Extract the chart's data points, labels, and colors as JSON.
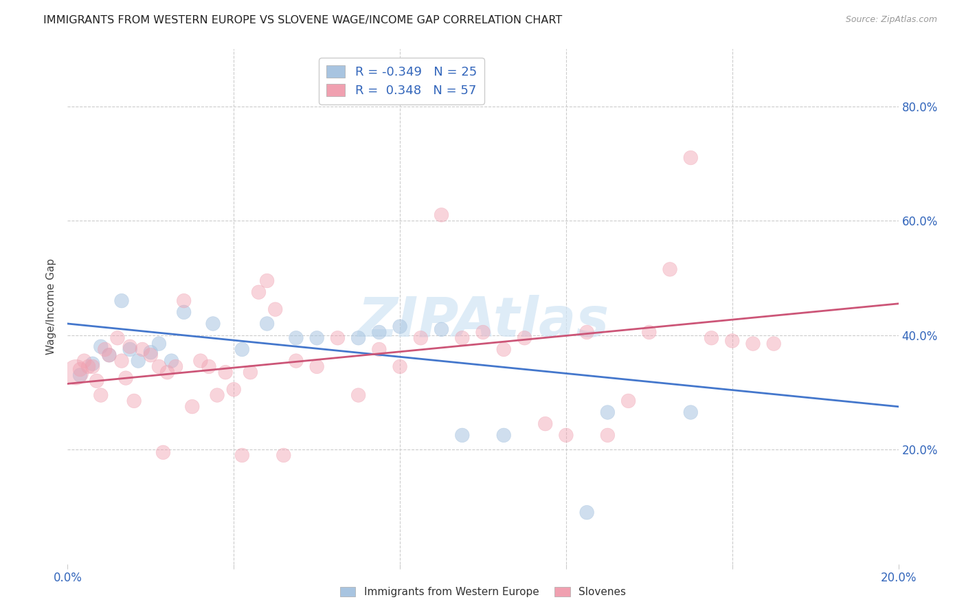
{
  "title": "IMMIGRANTS FROM WESTERN EUROPE VS SLOVENE WAGE/INCOME GAP CORRELATION CHART",
  "source": "Source: ZipAtlas.com",
  "ylabel": "Wage/Income Gap",
  "yticks": [
    0.2,
    0.4,
    0.6,
    0.8
  ],
  "ytick_labels": [
    "20.0%",
    "40.0%",
    "60.0%",
    "80.0%"
  ],
  "background_color": "#ffffff",
  "watermark": "ZIPAtlas",
  "blue_R": "-0.349",
  "blue_N": "25",
  "pink_R": "0.348",
  "pink_N": "57",
  "blue_color": "#a8c4e0",
  "pink_color": "#f0a0b0",
  "blue_line_color": "#4477cc",
  "pink_line_color": "#cc5577",
  "blue_scatter": [
    [
      0.003,
      0.33
    ],
    [
      0.006,
      0.35
    ],
    [
      0.008,
      0.38
    ],
    [
      0.01,
      0.365
    ],
    [
      0.013,
      0.46
    ],
    [
      0.015,
      0.375
    ],
    [
      0.017,
      0.355
    ],
    [
      0.02,
      0.37
    ],
    [
      0.022,
      0.385
    ],
    [
      0.025,
      0.355
    ],
    [
      0.028,
      0.44
    ],
    [
      0.035,
      0.42
    ],
    [
      0.042,
      0.375
    ],
    [
      0.048,
      0.42
    ],
    [
      0.055,
      0.395
    ],
    [
      0.06,
      0.395
    ],
    [
      0.07,
      0.395
    ],
    [
      0.075,
      0.405
    ],
    [
      0.08,
      0.415
    ],
    [
      0.09,
      0.41
    ],
    [
      0.095,
      0.225
    ],
    [
      0.105,
      0.225
    ],
    [
      0.125,
      0.09
    ],
    [
      0.13,
      0.265
    ],
    [
      0.15,
      0.265
    ]
  ],
  "pink_scatter": [
    [
      0.002,
      0.335
    ],
    [
      0.003,
      0.34
    ],
    [
      0.004,
      0.355
    ],
    [
      0.005,
      0.345
    ],
    [
      0.006,
      0.345
    ],
    [
      0.007,
      0.32
    ],
    [
      0.008,
      0.295
    ],
    [
      0.009,
      0.375
    ],
    [
      0.01,
      0.365
    ],
    [
      0.012,
      0.395
    ],
    [
      0.013,
      0.355
    ],
    [
      0.014,
      0.325
    ],
    [
      0.015,
      0.38
    ],
    [
      0.016,
      0.285
    ],
    [
      0.018,
      0.375
    ],
    [
      0.02,
      0.365
    ],
    [
      0.022,
      0.345
    ],
    [
      0.023,
      0.195
    ],
    [
      0.024,
      0.335
    ],
    [
      0.026,
      0.345
    ],
    [
      0.028,
      0.46
    ],
    [
      0.03,
      0.275
    ],
    [
      0.032,
      0.355
    ],
    [
      0.034,
      0.345
    ],
    [
      0.036,
      0.295
    ],
    [
      0.038,
      0.335
    ],
    [
      0.04,
      0.305
    ],
    [
      0.042,
      0.19
    ],
    [
      0.044,
      0.335
    ],
    [
      0.046,
      0.475
    ],
    [
      0.048,
      0.495
    ],
    [
      0.05,
      0.445
    ],
    [
      0.052,
      0.19
    ],
    [
      0.055,
      0.355
    ],
    [
      0.06,
      0.345
    ],
    [
      0.065,
      0.395
    ],
    [
      0.07,
      0.295
    ],
    [
      0.075,
      0.375
    ],
    [
      0.08,
      0.345
    ],
    [
      0.085,
      0.395
    ],
    [
      0.09,
      0.61
    ],
    [
      0.095,
      0.395
    ],
    [
      0.1,
      0.405
    ],
    [
      0.105,
      0.375
    ],
    [
      0.11,
      0.395
    ],
    [
      0.115,
      0.245
    ],
    [
      0.12,
      0.225
    ],
    [
      0.125,
      0.405
    ],
    [
      0.13,
      0.225
    ],
    [
      0.135,
      0.285
    ],
    [
      0.14,
      0.405
    ],
    [
      0.145,
      0.515
    ],
    [
      0.15,
      0.71
    ],
    [
      0.155,
      0.395
    ],
    [
      0.16,
      0.39
    ],
    [
      0.165,
      0.385
    ],
    [
      0.17,
      0.385
    ]
  ],
  "xlim": [
    0.0,
    0.2
  ],
  "ylim": [
    0.0,
    0.9
  ],
  "grid_color": "#cccccc",
  "tick_color": "#3366bb",
  "legend_label_color": "#3366bb",
  "legend_text_color": "#222222"
}
